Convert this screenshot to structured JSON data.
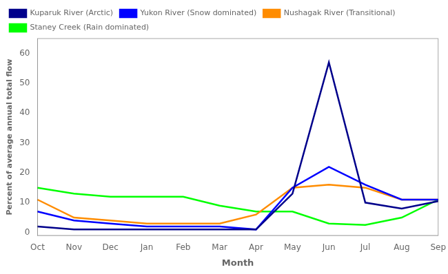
{
  "chart_data": {
    "type": "line",
    "xlabel": "Month",
    "ylabel": "Percent of average annual total flow",
    "categories": [
      "Oct",
      "Nov",
      "Dec",
      "Jan",
      "Feb",
      "Mar",
      "Apr",
      "May",
      "Jun",
      "Jul",
      "Aug",
      "Sep"
    ],
    "series": [
      {
        "name": "Kuparuk River (Arctic)",
        "color": "#00008B",
        "values": [
          2,
          1,
          1,
          1,
          1,
          1,
          1,
          13,
          57,
          10,
          8,
          10.5
        ]
      },
      {
        "name": "Yukon River (Snow dominated)",
        "color": "#0000FF",
        "values": [
          7,
          4,
          3,
          2,
          2,
          2,
          1,
          15,
          22,
          16,
          11,
          11
        ]
      },
      {
        "name": "Nushagak River (Transitional)",
        "color": "#FF8C00",
        "values": [
          11,
          5,
          4,
          3,
          3,
          3,
          6,
          15,
          16,
          15,
          11,
          11
        ]
      },
      {
        "name": "Staney Creek (Rain dominated)",
        "color": "#00FF00",
        "values": [
          15,
          13,
          12,
          12,
          12,
          9,
          7,
          7,
          3,
          2.5,
          5,
          11
        ]
      }
    ],
    "ylim": [
      -1,
      65
    ],
    "yticks": [
      0,
      10,
      20,
      30,
      40,
      50,
      60
    ],
    "grid": false,
    "legend": "upper left"
  }
}
